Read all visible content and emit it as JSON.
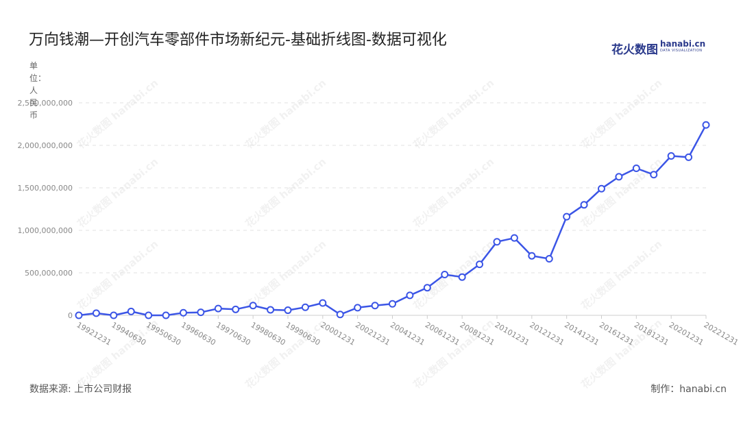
{
  "header": {
    "title": "万向钱潮—开创汽车零部件市场新纪元-基础折线图-数据可视化",
    "logo_cn": "花火数图",
    "logo_en": "hanabi.cn",
    "logo_sub": "DATA VISUALIZATION"
  },
  "unit_label": "单位：人民币",
  "footer": {
    "source": "数据来源: 上市公司财报",
    "credit": "制作：hanabi.cn"
  },
  "watermark": "花火数图 hanabi.cn",
  "colors": {
    "line": "#3b55e6",
    "marker_fill": "#ffffff",
    "grid": "#e0e0e0",
    "axis": "#cccccc"
  },
  "chart_data": {
    "type": "line",
    "title": "万向钱潮—开创汽车零部件市场新纪元-基础折线图-数据可视化",
    "ylabel": "单位：人民币",
    "ylim": [
      0,
      2500000000
    ],
    "yticks": [
      0,
      500000000,
      1000000000,
      1500000000,
      2000000000,
      2500000000
    ],
    "ytick_labels": [
      "0",
      "500,000,000",
      "1,000,000,000",
      "1,500,000,000",
      "2,000,000,000",
      "2,500,000,000"
    ],
    "grid": true,
    "x": [
      "19921231",
      "19931231",
      "19940630",
      "19941231",
      "19950630",
      "19951231",
      "19960630",
      "19961231",
      "19970630",
      "19971231",
      "19980630",
      "19981231",
      "19990630",
      "19991231",
      "20001231",
      "20011231",
      "20021231",
      "20031231",
      "20041231",
      "20051231",
      "20061231",
      "20071231",
      "20081231",
      "20091231",
      "20101231",
      "20111231",
      "20121231",
      "20131231",
      "20141231",
      "20151231",
      "20161231",
      "20171231",
      "20181231",
      "20191231",
      "20201231",
      "20211231",
      "20221231"
    ],
    "xtick_labels": [
      "19921231",
      "19940630",
      "19950630",
      "19960630",
      "19970630",
      "19980630",
      "19990630",
      "20001231",
      "20021231",
      "20041231",
      "20061231",
      "20081231",
      "20101231",
      "20121231",
      "20141231",
      "20161231",
      "20181231",
      "20201231",
      "20221231"
    ],
    "series": [
      {
        "values": [
          0,
          25000000,
          0,
          45000000,
          0,
          0,
          30000000,
          35000000,
          80000000,
          70000000,
          115000000,
          65000000,
          60000000,
          95000000,
          145000000,
          10000000,
          90000000,
          115000000,
          135000000,
          235000000,
          325000000,
          480000000,
          450000000,
          600000000,
          865000000,
          910000000,
          700000000,
          665000000,
          1160000000,
          1300000000,
          1490000000,
          1630000000,
          1730000000,
          1655000000,
          1875000000,
          1860000000,
          2240000000
        ]
      }
    ]
  }
}
